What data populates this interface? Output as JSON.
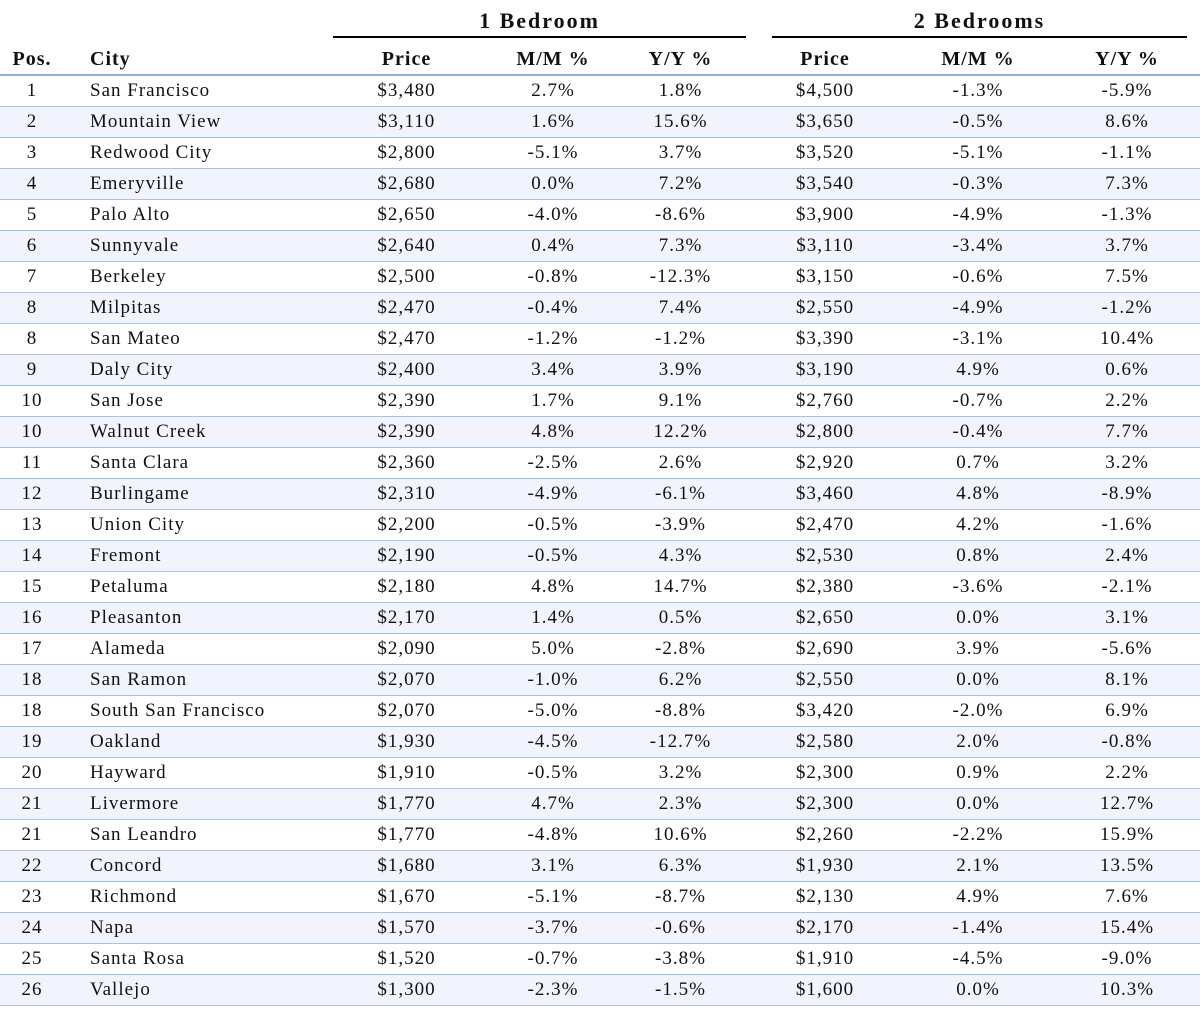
{
  "groups": {
    "bed1": "1 Bedroom",
    "bed2": "2 Bedrooms"
  },
  "headers": {
    "pos": "Pos.",
    "city": "City",
    "price1": "Price",
    "mm1": "M/M %",
    "yy1": "Y/Y %",
    "price2": "Price",
    "mm2": "M/M %",
    "yy2": "Y/Y %"
  },
  "rows": [
    {
      "pos": "1",
      "city": "San Francisco",
      "p1": "$3,480",
      "mm1": "2.7%",
      "yy1": "1.8%",
      "p2": "$4,500",
      "mm2": "-1.3%",
      "yy2": "-5.9%"
    },
    {
      "pos": "2",
      "city": "Mountain View",
      "p1": "$3,110",
      "mm1": "1.6%",
      "yy1": "15.6%",
      "p2": "$3,650",
      "mm2": "-0.5%",
      "yy2": "8.6%"
    },
    {
      "pos": "3",
      "city": "Redwood City",
      "p1": "$2,800",
      "mm1": "-5.1%",
      "yy1": "3.7%",
      "p2": "$3,520",
      "mm2": "-5.1%",
      "yy2": "-1.1%"
    },
    {
      "pos": "4",
      "city": "Emeryville",
      "p1": "$2,680",
      "mm1": "0.0%",
      "yy1": "7.2%",
      "p2": "$3,540",
      "mm2": "-0.3%",
      "yy2": "7.3%"
    },
    {
      "pos": "5",
      "city": "Palo Alto",
      "p1": "$2,650",
      "mm1": "-4.0%",
      "yy1": "-8.6%",
      "p2": "$3,900",
      "mm2": "-4.9%",
      "yy2": "-1.3%"
    },
    {
      "pos": "6",
      "city": "Sunnyvale",
      "p1": "$2,640",
      "mm1": "0.4%",
      "yy1": "7.3%",
      "p2": "$3,110",
      "mm2": "-3.4%",
      "yy2": "3.7%"
    },
    {
      "pos": "7",
      "city": "Berkeley",
      "p1": "$2,500",
      "mm1": "-0.8%",
      "yy1": "-12.3%",
      "p2": "$3,150",
      "mm2": "-0.6%",
      "yy2": "7.5%"
    },
    {
      "pos": "8",
      "city": "Milpitas",
      "p1": "$2,470",
      "mm1": "-0.4%",
      "yy1": "7.4%",
      "p2": "$2,550",
      "mm2": "-4.9%",
      "yy2": "-1.2%"
    },
    {
      "pos": "8",
      "city": "San Mateo",
      "p1": "$2,470",
      "mm1": "-1.2%",
      "yy1": "-1.2%",
      "p2": "$3,390",
      "mm2": "-3.1%",
      "yy2": "10.4%"
    },
    {
      "pos": "9",
      "city": "Daly City",
      "p1": "$2,400",
      "mm1": "3.4%",
      "yy1": "3.9%",
      "p2": "$3,190",
      "mm2": "4.9%",
      "yy2": "0.6%"
    },
    {
      "pos": "10",
      "city": "San Jose",
      "p1": "$2,390",
      "mm1": "1.7%",
      "yy1": "9.1%",
      "p2": "$2,760",
      "mm2": "-0.7%",
      "yy2": "2.2%"
    },
    {
      "pos": "10",
      "city": "Walnut Creek",
      "p1": "$2,390",
      "mm1": "4.8%",
      "yy1": "12.2%",
      "p2": "$2,800",
      "mm2": "-0.4%",
      "yy2": "7.7%"
    },
    {
      "pos": "11",
      "city": "Santa Clara",
      "p1": "$2,360",
      "mm1": "-2.5%",
      "yy1": "2.6%",
      "p2": "$2,920",
      "mm2": "0.7%",
      "yy2": "3.2%"
    },
    {
      "pos": "12",
      "city": "Burlingame",
      "p1": "$2,310",
      "mm1": "-4.9%",
      "yy1": "-6.1%",
      "p2": "$3,460",
      "mm2": "4.8%",
      "yy2": "-8.9%"
    },
    {
      "pos": "13",
      "city": "Union City",
      "p1": "$2,200",
      "mm1": "-0.5%",
      "yy1": "-3.9%",
      "p2": "$2,470",
      "mm2": "4.2%",
      "yy2": "-1.6%"
    },
    {
      "pos": "14",
      "city": "Fremont",
      "p1": "$2,190",
      "mm1": "-0.5%",
      "yy1": "4.3%",
      "p2": "$2,530",
      "mm2": "0.8%",
      "yy2": "2.4%"
    },
    {
      "pos": "15",
      "city": "Petaluma",
      "p1": "$2,180",
      "mm1": "4.8%",
      "yy1": "14.7%",
      "p2": "$2,380",
      "mm2": "-3.6%",
      "yy2": "-2.1%"
    },
    {
      "pos": "16",
      "city": "Pleasanton",
      "p1": "$2,170",
      "mm1": "1.4%",
      "yy1": "0.5%",
      "p2": "$2,650",
      "mm2": "0.0%",
      "yy2": "3.1%"
    },
    {
      "pos": "17",
      "city": "Alameda",
      "p1": "$2,090",
      "mm1": "5.0%",
      "yy1": "-2.8%",
      "p2": "$2,690",
      "mm2": "3.9%",
      "yy2": "-5.6%"
    },
    {
      "pos": "18",
      "city": "San Ramon",
      "p1": "$2,070",
      "mm1": "-1.0%",
      "yy1": "6.2%",
      "p2": "$2,550",
      "mm2": "0.0%",
      "yy2": "8.1%"
    },
    {
      "pos": "18",
      "city": "South San Francisco",
      "p1": "$2,070",
      "mm1": "-5.0%",
      "yy1": "-8.8%",
      "p2": "$3,420",
      "mm2": "-2.0%",
      "yy2": "6.9%"
    },
    {
      "pos": "19",
      "city": "Oakland",
      "p1": "$1,930",
      "mm1": "-4.5%",
      "yy1": "-12.7%",
      "p2": "$2,580",
      "mm2": "2.0%",
      "yy2": "-0.8%"
    },
    {
      "pos": "20",
      "city": "Hayward",
      "p1": "$1,910",
      "mm1": "-0.5%",
      "yy1": "3.2%",
      "p2": "$2,300",
      "mm2": "0.9%",
      "yy2": "2.2%"
    },
    {
      "pos": "21",
      "city": "Livermore",
      "p1": "$1,770",
      "mm1": "4.7%",
      "yy1": "2.3%",
      "p2": "$2,300",
      "mm2": "0.0%",
      "yy2": "12.7%"
    },
    {
      "pos": "21",
      "city": "San Leandro",
      "p1": "$1,770",
      "mm1": "-4.8%",
      "yy1": "10.6%",
      "p2": "$2,260",
      "mm2": "-2.2%",
      "yy2": "15.9%"
    },
    {
      "pos": "22",
      "city": "Concord",
      "p1": "$1,680",
      "mm1": "3.1%",
      "yy1": "6.3%",
      "p2": "$1,930",
      "mm2": "2.1%",
      "yy2": "13.5%"
    },
    {
      "pos": "23",
      "city": "Richmond",
      "p1": "$1,670",
      "mm1": "-5.1%",
      "yy1": "-8.7%",
      "p2": "$2,130",
      "mm2": "4.9%",
      "yy2": "7.6%"
    },
    {
      "pos": "24",
      "city": "Napa",
      "p1": "$1,570",
      "mm1": "-3.7%",
      "yy1": "-0.6%",
      "p2": "$2,170",
      "mm2": "-1.4%",
      "yy2": "15.4%"
    },
    {
      "pos": "25",
      "city": "Santa Rosa",
      "p1": "$1,520",
      "mm1": "-0.7%",
      "yy1": "-3.8%",
      "p2": "$1,910",
      "mm2": "-4.5%",
      "yy2": "-9.0%"
    },
    {
      "pos": "26",
      "city": "Vallejo",
      "p1": "$1,300",
      "mm1": "-2.3%",
      "yy1": "-1.5%",
      "p2": "$1,600",
      "mm2": "0.0%",
      "yy2": "10.3%"
    }
  ]
}
